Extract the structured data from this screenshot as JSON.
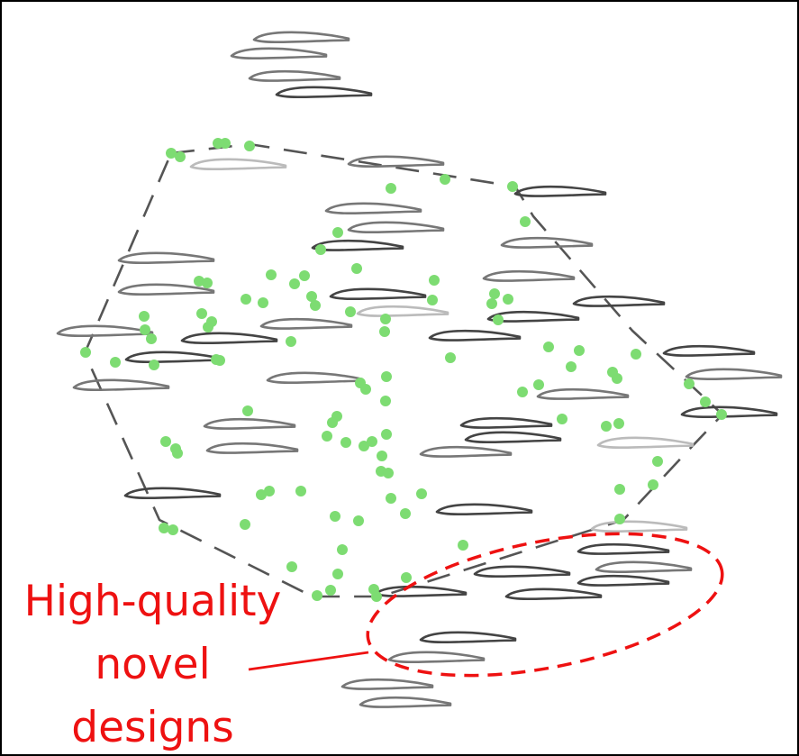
{
  "annotation": {
    "lines": [
      "High-quality",
      "novel",
      "designs"
    ],
    "color": "#ee1111"
  },
  "colors": {
    "sample_point": "#7ddc72",
    "boundary": "#555555",
    "airfoil_dark": "#444444",
    "airfoil_mid": "#777777",
    "airfoil_light": "#bbbbbb"
  }
}
